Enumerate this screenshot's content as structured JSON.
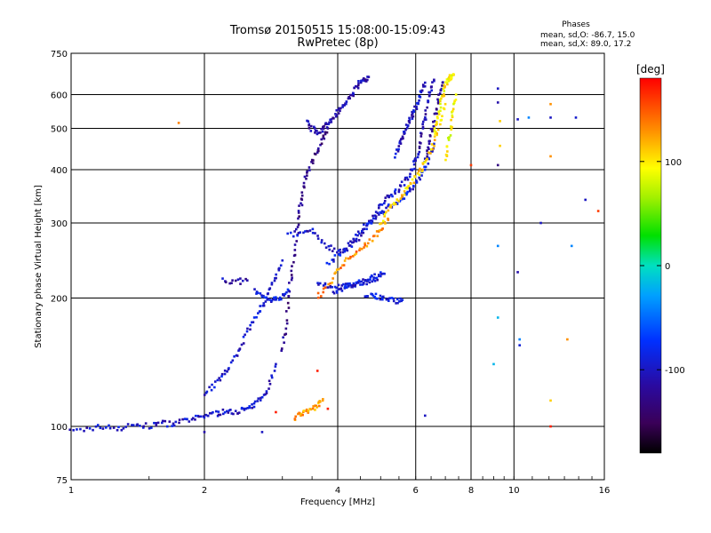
{
  "chart_data": {
    "type": "scatter",
    "title": "Tromsø 20150515 15:08:00-15:09:43",
    "subtitle": "RwPretec (8p)",
    "xlabel": "Frequency [MHz]",
    "ylabel": "Stationary phase Virtual Height [km]",
    "x_scale": "log",
    "y_scale": "log",
    "xlim": [
      1,
      16
    ],
    "ylim": [
      75,
      750
    ],
    "x_ticks": [
      1,
      2,
      4,
      6,
      8,
      10,
      16
    ],
    "y_ticks": [
      75,
      100,
      200,
      300,
      400,
      500,
      600,
      750
    ],
    "grid": true,
    "colorbar": {
      "label": "[deg]",
      "range": [
        -180,
        180
      ],
      "ticks": [
        100,
        0,
        -100
      ],
      "colormap": "rainbow (black-purple-blue-cyan-green-yellow-orange-red)"
    },
    "stats": {
      "heading": "Phases",
      "line1": "mean, sd,O: -86.7, 15.0",
      "line2": "mean, sd,X:  89.0, 17.2"
    },
    "traces": [
      {
        "x": [
          1.0,
          1.1,
          1.2,
          1.3,
          1.4,
          1.5,
          1.6,
          1.7,
          1.8,
          1.9,
          2.0,
          2.1,
          2.2,
          2.3,
          2.4,
          2.5,
          2.6,
          2.7,
          2.8,
          2.9
        ],
        "y": [
          97,
          99,
          100,
          99,
          101,
          100,
          102,
          101,
          103,
          104,
          106,
          107,
          108,
          108,
          109,
          110,
          112,
          118,
          125,
          140
        ],
        "phase": -100
      },
      {
        "x": [
          2.0,
          2.1,
          2.2,
          2.3,
          2.4,
          2.5,
          2.6,
          2.7,
          2.8,
          2.9,
          3.0
        ],
        "y": [
          120,
          125,
          132,
          140,
          152,
          165,
          178,
          192,
          208,
          225,
          245
        ],
        "phase": -95
      },
      {
        "x": [
          2.6,
          2.7,
          2.8,
          2.9,
          3.0,
          3.1
        ],
        "y": [
          210,
          200,
          197,
          198,
          202,
          208
        ],
        "phase": -85
      },
      {
        "x": [
          2.2,
          2.35,
          2.5
        ],
        "y": [
          220,
          218,
          220
        ],
        "phase": -110
      },
      {
        "x": [
          3.0,
          3.05,
          3.1,
          3.15,
          3.2,
          3.25,
          3.3,
          3.35,
          3.4,
          3.5,
          3.6,
          3.7,
          3.8
        ],
        "y": [
          150,
          170,
          200,
          230,
          260,
          300,
          330,
          360,
          390,
          420,
          440,
          470,
          500
        ],
        "phase": -125
      },
      {
        "x": [
          3.4,
          3.5,
          3.6,
          3.7,
          3.8,
          3.9,
          4.0,
          4.1,
          4.2,
          4.3,
          4.4,
          4.5,
          4.6,
          4.7
        ],
        "y": [
          520,
          500,
          490,
          500,
          510,
          530,
          550,
          560,
          580,
          600,
          620,
          640,
          650,
          660
        ],
        "phase": -110
      },
      {
        "x": [
          3.1,
          3.3,
          3.5,
          3.7,
          3.9,
          4.1,
          4.3,
          4.5,
          4.7,
          4.9,
          5.1,
          5.3,
          5.5,
          5.7,
          5.9,
          6.0
        ],
        "y": [
          280,
          285,
          290,
          270,
          260,
          255,
          265,
          280,
          300,
          320,
          340,
          350,
          360,
          380,
          400,
          420
        ],
        "phase": -100
      },
      {
        "x": [
          3.8,
          4.0,
          4.2,
          4.4,
          4.6,
          4.8,
          5.0,
          5.2,
          5.4,
          5.6,
          5.8,
          6.0,
          6.2,
          6.4,
          6.6
        ],
        "y": [
          240,
          250,
          265,
          280,
          295,
          305,
          315,
          325,
          335,
          345,
          355,
          370,
          390,
          420,
          460
        ],
        "phase": -90
      },
      {
        "x": [
          3.6,
          3.8,
          4.0,
          4.2,
          4.4,
          4.6,
          4.8,
          5.0
        ],
        "y": [
          215,
          213,
          212,
          214,
          216,
          218,
          222,
          225
        ],
        "phase": -100
      },
      {
        "x": [
          3.9,
          4.1,
          4.3,
          4.5,
          4.7,
          4.9,
          5.1
        ],
        "y": [
          205,
          210,
          215,
          218,
          222,
          225,
          228
        ],
        "phase": -90
      },
      {
        "x": [
          4.6,
          4.8,
          5.0,
          5.2,
          5.4,
          5.6
        ],
        "y": [
          200,
          203,
          200,
          198,
          197,
          198
        ],
        "phase": -85
      },
      {
        "x": [
          5.4,
          5.5,
          5.6,
          5.7,
          5.8,
          5.9,
          6.0,
          6.1,
          6.2,
          6.3
        ],
        "y": [
          430,
          460,
          480,
          500,
          520,
          540,
          560,
          580,
          610,
          640
        ],
        "phase": -100
      },
      {
        "x": [
          6.0,
          6.1,
          6.2,
          6.3,
          6.4,
          6.5,
          6.6
        ],
        "y": [
          420,
          450,
          490,
          530,
          580,
          620,
          650
        ],
        "phase": -110
      },
      {
        "x": [
          6.3,
          6.4,
          6.5,
          6.6,
          6.7,
          6.8,
          6.9
        ],
        "y": [
          420,
          450,
          480,
          520,
          560,
          600,
          640
        ],
        "phase": -120
      },
      {
        "x": [
          3.2,
          3.3,
          3.4,
          3.5,
          3.6,
          3.7
        ],
        "y": [
          105,
          107,
          108,
          110,
          112,
          115
        ],
        "phase": 125
      },
      {
        "x": [
          3.6,
          3.8,
          4.0,
          4.2,
          4.4,
          4.6,
          4.8,
          5.0,
          5.2
        ],
        "y": [
          200,
          215,
          232,
          245,
          255,
          265,
          275,
          290,
          305
        ],
        "phase": 135
      },
      {
        "x": [
          5.0,
          5.2,
          5.4,
          5.6,
          5.8,
          6.0,
          6.2,
          6.4,
          6.6,
          6.8,
          7.0
        ],
        "y": [
          300,
          320,
          335,
          350,
          365,
          385,
          405,
          430,
          460,
          510,
          570
        ],
        "phase": 108
      },
      {
        "x": [
          6.6,
          6.7,
          6.8,
          6.9,
          7.0,
          7.1,
          7.2,
          7.3
        ],
        "y": [
          480,
          520,
          560,
          600,
          630,
          650,
          660,
          670
        ],
        "phase": 98
      },
      {
        "x": [
          7.0,
          7.1,
          7.2,
          7.3,
          7.4
        ],
        "y": [
          420,
          460,
          500,
          550,
          600
        ],
        "phase": 92
      }
    ],
    "isolated_points": [
      {
        "x": 1.75,
        "y": 515,
        "phase": 135
      },
      {
        "x": 9.2,
        "y": 620,
        "phase": -100
      },
      {
        "x": 9.2,
        "y": 575,
        "phase": -110
      },
      {
        "x": 9.3,
        "y": 520,
        "phase": 110
      },
      {
        "x": 9.3,
        "y": 455,
        "phase": 110
      },
      {
        "x": 9.2,
        "y": 410,
        "phase": -130
      },
      {
        "x": 10.2,
        "y": 525,
        "phase": -100
      },
      {
        "x": 10.8,
        "y": 530,
        "phase": -40
      },
      {
        "x": 12.1,
        "y": 530,
        "phase": -100
      },
      {
        "x": 12.1,
        "y": 570,
        "phase": 130
      },
      {
        "x": 12.1,
        "y": 430,
        "phase": 130
      },
      {
        "x": 13.8,
        "y": 530,
        "phase": -95
      },
      {
        "x": 14.5,
        "y": 340,
        "phase": -100
      },
      {
        "x": 15.5,
        "y": 320,
        "phase": 160
      },
      {
        "x": 11.5,
        "y": 300,
        "phase": -100
      },
      {
        "x": 9.2,
        "y": 265,
        "phase": -40
      },
      {
        "x": 10.2,
        "y": 230,
        "phase": -110
      },
      {
        "x": 13.5,
        "y": 265,
        "phase": -40
      },
      {
        "x": 9.2,
        "y": 180,
        "phase": -20
      },
      {
        "x": 10.3,
        "y": 160,
        "phase": -40
      },
      {
        "x": 10.3,
        "y": 155,
        "phase": -90
      },
      {
        "x": 13.2,
        "y": 160,
        "phase": 130
      },
      {
        "x": 12.1,
        "y": 115,
        "phase": 110
      },
      {
        "x": 12.1,
        "y": 100,
        "phase": 170
      },
      {
        "x": 9.0,
        "y": 140,
        "phase": -20
      },
      {
        "x": 6.3,
        "y": 106,
        "phase": -100
      },
      {
        "x": 8.0,
        "y": 410,
        "phase": 160
      },
      {
        "x": 2.0,
        "y": 97,
        "phase": -110
      },
      {
        "x": 2.7,
        "y": 97,
        "phase": -100
      },
      {
        "x": 3.8,
        "y": 110,
        "phase": 170
      },
      {
        "x": 2.9,
        "y": 108,
        "phase": 170
      },
      {
        "x": 3.6,
        "y": 135,
        "phase": 170
      }
    ]
  }
}
